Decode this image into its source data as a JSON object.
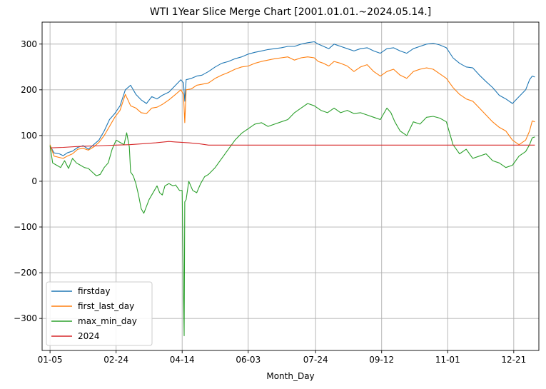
{
  "chart_data": {
    "type": "line",
    "title": "WTI 1Year Slice Merge Chart [2001.01.01.~2024.05.14.]",
    "xlabel": "Month_Day",
    "ylabel": "",
    "x_ticks": [
      "01-05",
      "02-24",
      "04-14",
      "06-03",
      "07-24",
      "09-12",
      "11-01",
      "12-21"
    ],
    "x_tick_days": [
      5,
      55,
      105,
      155,
      206,
      256,
      306,
      356
    ],
    "xlim": [
      -1,
      375
    ],
    "y_ticks": [
      -300,
      -200,
      -100,
      0,
      100,
      200,
      300
    ],
    "ylim": [
      -370,
      348
    ],
    "grid": true,
    "legend_position": "lower-left",
    "series": [
      {
        "name": "firstday",
        "color": "#1f77b4",
        "points": [
          [
            5,
            78
          ],
          [
            8,
            62
          ],
          [
            12,
            60
          ],
          [
            15,
            56
          ],
          [
            18,
            62
          ],
          [
            22,
            66
          ],
          [
            26,
            74
          ],
          [
            30,
            78
          ],
          [
            34,
            70
          ],
          [
            38,
            80
          ],
          [
            42,
            90
          ],
          [
            46,
            110
          ],
          [
            50,
            135
          ],
          [
            54,
            148
          ],
          [
            58,
            165
          ],
          [
            62,
            200
          ],
          [
            66,
            210
          ],
          [
            70,
            190
          ],
          [
            74,
            178
          ],
          [
            78,
            170
          ],
          [
            82,
            185
          ],
          [
            86,
            180
          ],
          [
            90,
            188
          ],
          [
            95,
            195
          ],
          [
            100,
            210
          ],
          [
            104,
            222
          ],
          [
            106,
            215
          ],
          [
            107,
            175
          ],
          [
            108,
            222
          ],
          [
            112,
            225
          ],
          [
            116,
            230
          ],
          [
            120,
            232
          ],
          [
            125,
            240
          ],
          [
            130,
            250
          ],
          [
            135,
            258
          ],
          [
            140,
            262
          ],
          [
            145,
            268
          ],
          [
            150,
            272
          ],
          [
            155,
            278
          ],
          [
            160,
            282
          ],
          [
            165,
            285
          ],
          [
            170,
            288
          ],
          [
            175,
            290
          ],
          [
            180,
            292
          ],
          [
            185,
            295
          ],
          [
            190,
            295
          ],
          [
            195,
            300
          ],
          [
            200,
            303
          ],
          [
            205,
            305
          ],
          [
            208,
            300
          ],
          [
            212,
            295
          ],
          [
            216,
            290
          ],
          [
            220,
            300
          ],
          [
            225,
            295
          ],
          [
            230,
            290
          ],
          [
            235,
            285
          ],
          [
            240,
            290
          ],
          [
            245,
            292
          ],
          [
            250,
            285
          ],
          [
            255,
            280
          ],
          [
            260,
            290
          ],
          [
            265,
            292
          ],
          [
            270,
            285
          ],
          [
            275,
            280
          ],
          [
            280,
            290
          ],
          [
            285,
            295
          ],
          [
            290,
            300
          ],
          [
            295,
            302
          ],
          [
            300,
            298
          ],
          [
            305,
            292
          ],
          [
            310,
            270
          ],
          [
            315,
            258
          ],
          [
            320,
            250
          ],
          [
            325,
            248
          ],
          [
            330,
            232
          ],
          [
            335,
            218
          ],
          [
            340,
            205
          ],
          [
            345,
            188
          ],
          [
            350,
            180
          ],
          [
            355,
            170
          ],
          [
            360,
            185
          ],
          [
            365,
            200
          ],
          [
            368,
            222
          ],
          [
            370,
            230
          ],
          [
            372,
            228
          ]
        ]
      },
      {
        "name": "first_last_day",
        "color": "#ff7f0e",
        "points": [
          [
            5,
            80
          ],
          [
            8,
            55
          ],
          [
            12,
            52
          ],
          [
            15,
            50
          ],
          [
            18,
            55
          ],
          [
            22,
            60
          ],
          [
            26,
            70
          ],
          [
            30,
            72
          ],
          [
            34,
            68
          ],
          [
            38,
            75
          ],
          [
            42,
            85
          ],
          [
            46,
            100
          ],
          [
            50,
            120
          ],
          [
            54,
            140
          ],
          [
            58,
            155
          ],
          [
            62,
            190
          ],
          [
            66,
            165
          ],
          [
            70,
            160
          ],
          [
            74,
            150
          ],
          [
            78,
            148
          ],
          [
            82,
            160
          ],
          [
            86,
            162
          ],
          [
            90,
            168
          ],
          [
            95,
            178
          ],
          [
            100,
            190
          ],
          [
            104,
            200
          ],
          [
            106,
            190
          ],
          [
            107,
            128
          ],
          [
            108,
            200
          ],
          [
            112,
            202
          ],
          [
            116,
            210
          ],
          [
            120,
            212
          ],
          [
            125,
            215
          ],
          [
            130,
            225
          ],
          [
            135,
            232
          ],
          [
            140,
            238
          ],
          [
            145,
            245
          ],
          [
            150,
            250
          ],
          [
            155,
            252
          ],
          [
            160,
            258
          ],
          [
            165,
            262
          ],
          [
            170,
            265
          ],
          [
            175,
            268
          ],
          [
            180,
            270
          ],
          [
            185,
            272
          ],
          [
            190,
            265
          ],
          [
            195,
            270
          ],
          [
            200,
            272
          ],
          [
            205,
            270
          ],
          [
            208,
            262
          ],
          [
            212,
            258
          ],
          [
            216,
            252
          ],
          [
            220,
            262
          ],
          [
            225,
            258
          ],
          [
            230,
            252
          ],
          [
            235,
            240
          ],
          [
            240,
            250
          ],
          [
            245,
            255
          ],
          [
            250,
            240
          ],
          [
            255,
            230
          ],
          [
            260,
            240
          ],
          [
            265,
            245
          ],
          [
            270,
            232
          ],
          [
            275,
            225
          ],
          [
            280,
            240
          ],
          [
            285,
            245
          ],
          [
            290,
            248
          ],
          [
            295,
            245
          ],
          [
            300,
            235
          ],
          [
            305,
            225
          ],
          [
            310,
            205
          ],
          [
            315,
            190
          ],
          [
            320,
            180
          ],
          [
            325,
            175
          ],
          [
            330,
            160
          ],
          [
            335,
            145
          ],
          [
            340,
            130
          ],
          [
            345,
            118
          ],
          [
            350,
            110
          ],
          [
            355,
            90
          ],
          [
            360,
            80
          ],
          [
            365,
            90
          ],
          [
            368,
            110
          ],
          [
            370,
            132
          ],
          [
            372,
            130
          ]
        ]
      },
      {
        "name": "max_min_day",
        "color": "#2ca02c",
        "points": [
          [
            5,
            78
          ],
          [
            7,
            40
          ],
          [
            10,
            35
          ],
          [
            13,
            30
          ],
          [
            16,
            45
          ],
          [
            19,
            28
          ],
          [
            22,
            50
          ],
          [
            25,
            40
          ],
          [
            28,
            35
          ],
          [
            31,
            30
          ],
          [
            34,
            28
          ],
          [
            37,
            20
          ],
          [
            40,
            12
          ],
          [
            43,
            15
          ],
          [
            46,
            30
          ],
          [
            49,
            40
          ],
          [
            52,
            70
          ],
          [
            55,
            90
          ],
          [
            58,
            85
          ],
          [
            61,
            80
          ],
          [
            63,
            106
          ],
          [
            65,
            75
          ],
          [
            66,
            20
          ],
          [
            68,
            12
          ],
          [
            70,
            -5
          ],
          [
            72,
            -30
          ],
          [
            74,
            -60
          ],
          [
            76,
            -70
          ],
          [
            78,
            -55
          ],
          [
            80,
            -40
          ],
          [
            82,
            -30
          ],
          [
            84,
            -20
          ],
          [
            86,
            -10
          ],
          [
            88,
            -25
          ],
          [
            90,
            -30
          ],
          [
            92,
            -10
          ],
          [
            95,
            -5
          ],
          [
            98,
            -10
          ],
          [
            100,
            -8
          ],
          [
            103,
            -20
          ],
          [
            105,
            -20
          ],
          [
            106,
            -250
          ],
          [
            106.5,
            -338
          ],
          [
            107,
            -45
          ],
          [
            108,
            -40
          ],
          [
            110,
            0
          ],
          [
            113,
            -20
          ],
          [
            116,
            -25
          ],
          [
            119,
            -5
          ],
          [
            122,
            10
          ],
          [
            125,
            15
          ],
          [
            130,
            30
          ],
          [
            135,
            50
          ],
          [
            140,
            70
          ],
          [
            145,
            90
          ],
          [
            150,
            105
          ],
          [
            155,
            115
          ],
          [
            160,
            125
          ],
          [
            165,
            128
          ],
          [
            170,
            120
          ],
          [
            175,
            125
          ],
          [
            180,
            130
          ],
          [
            185,
            135
          ],
          [
            190,
            150
          ],
          [
            195,
            160
          ],
          [
            200,
            170
          ],
          [
            205,
            165
          ],
          [
            210,
            155
          ],
          [
            215,
            150
          ],
          [
            220,
            160
          ],
          [
            225,
            150
          ],
          [
            230,
            155
          ],
          [
            235,
            148
          ],
          [
            240,
            150
          ],
          [
            245,
            145
          ],
          [
            250,
            140
          ],
          [
            255,
            135
          ],
          [
            260,
            160
          ],
          [
            263,
            150
          ],
          [
            266,
            130
          ],
          [
            270,
            110
          ],
          [
            275,
            100
          ],
          [
            280,
            130
          ],
          [
            285,
            125
          ],
          [
            290,
            140
          ],
          [
            295,
            142
          ],
          [
            300,
            138
          ],
          [
            305,
            130
          ],
          [
            310,
            80
          ],
          [
            315,
            60
          ],
          [
            320,
            70
          ],
          [
            325,
            50
          ],
          [
            330,
            55
          ],
          [
            335,
            60
          ],
          [
            340,
            45
          ],
          [
            345,
            40
          ],
          [
            350,
            30
          ],
          [
            355,
            35
          ],
          [
            360,
            55
          ],
          [
            365,
            65
          ],
          [
            368,
            80
          ],
          [
            370,
            95
          ],
          [
            372,
            97
          ]
        ]
      },
      {
        "name": "2024",
        "color": "#d62728",
        "points": [
          [
            5,
            73
          ],
          [
            15,
            74
          ],
          [
            25,
            76
          ],
          [
            35,
            77
          ],
          [
            45,
            78
          ],
          [
            55,
            79
          ],
          [
            65,
            80
          ],
          [
            75,
            82
          ],
          [
            85,
            84
          ],
          [
            95,
            87
          ],
          [
            100,
            86
          ],
          [
            105,
            85
          ],
          [
            110,
            84
          ],
          [
            118,
            82
          ],
          [
            125,
            79
          ],
          [
            135,
            79
          ],
          [
            372,
            79
          ]
        ]
      }
    ]
  }
}
